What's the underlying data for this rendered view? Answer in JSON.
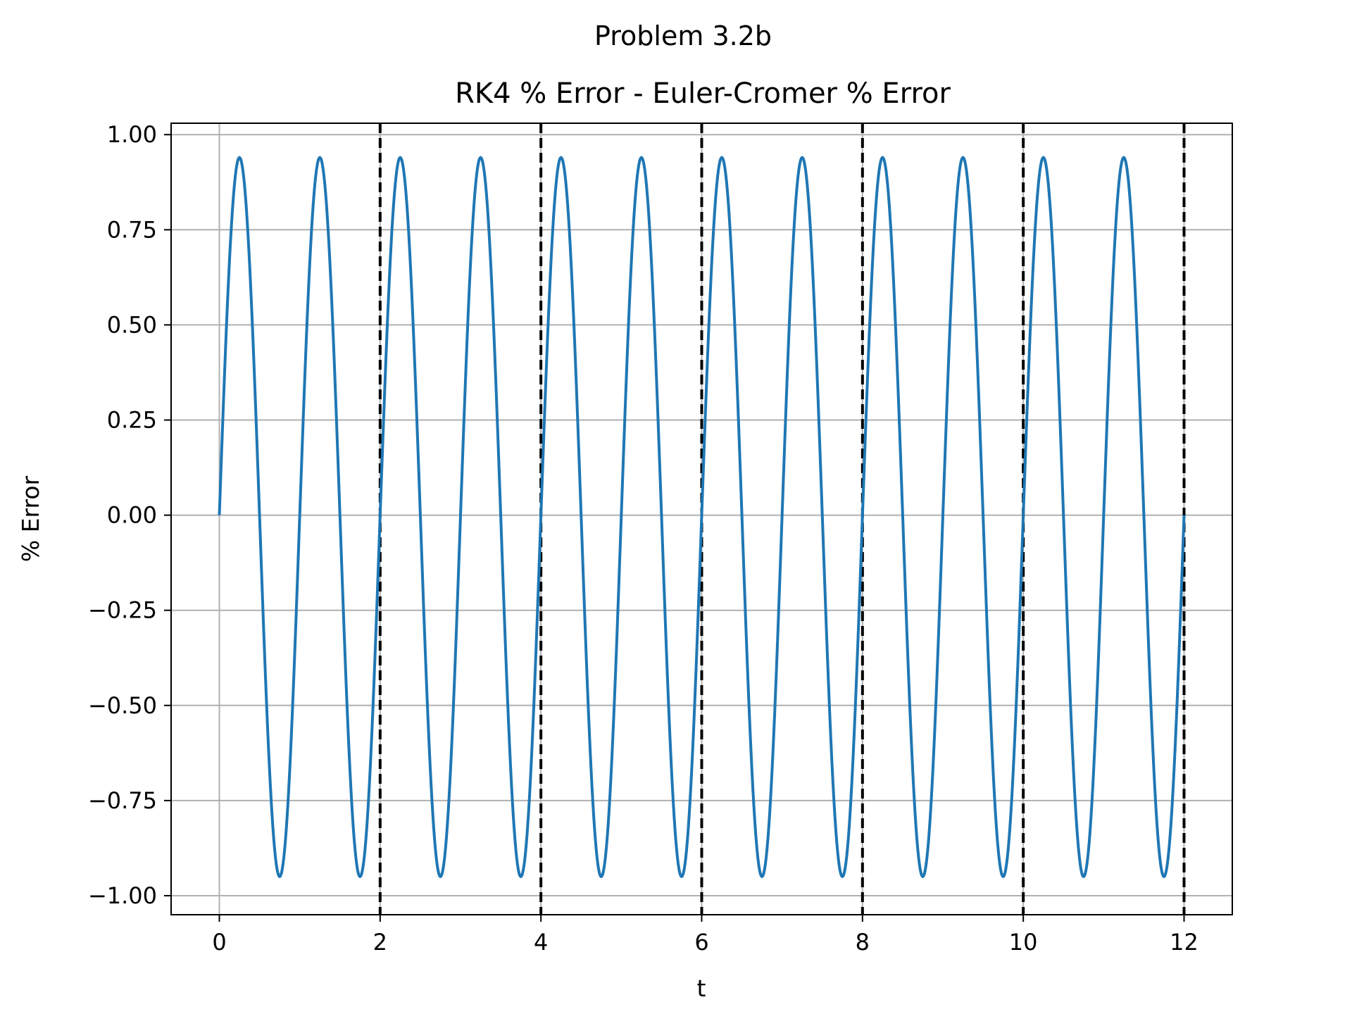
{
  "chart_data": {
    "type": "line",
    "suptitle": "Problem 3.2b",
    "title": "RK4 % Error - Euler-Cromer % Error",
    "xlabel": "t",
    "ylabel": "% Error",
    "xlim": [
      -0.6,
      12.6
    ],
    "ylim": [
      -1.05,
      1.03
    ],
    "xticks": [
      0,
      2,
      4,
      6,
      8,
      10,
      12
    ],
    "xtick_labels": [
      "0",
      "2",
      "4",
      "6",
      "8",
      "10",
      "12"
    ],
    "yticks": [
      1.0,
      0.75,
      0.5,
      0.25,
      0.0,
      -0.25,
      -0.5,
      -0.75,
      -1.0
    ],
    "ytick_labels": [
      "1.00",
      "0.75",
      "0.50",
      "0.25",
      "0.00",
      "−0.25",
      "−0.50",
      "−0.75",
      "−1.00"
    ],
    "grid": true,
    "series": [
      {
        "color": "#1f77b4",
        "x": [
          0,
          0.25,
          0.5,
          0.75,
          1.0,
          1.25,
          1.5,
          1.75,
          2.0,
          2.25,
          2.5,
          2.75,
          3.0,
          3.25,
          3.5,
          3.75,
          4.0,
          4.25,
          4.5,
          4.75,
          5.0,
          5.25,
          5.5,
          5.75,
          6.0,
          6.25,
          6.5,
          6.75,
          7.0,
          7.25,
          7.5,
          7.75,
          8.0,
          8.25,
          8.5,
          8.75,
          9.0,
          9.25,
          9.5,
          9.75,
          10.0,
          10.25,
          10.5,
          10.75,
          11.0,
          11.25,
          11.5,
          11.75,
          12.0
        ],
        "y": [
          0,
          0.94,
          0,
          -0.95,
          0,
          0.94,
          0,
          -0.95,
          0,
          0.94,
          0,
          -0.95,
          0,
          0.94,
          0,
          -0.95,
          0,
          0.94,
          0,
          -0.95,
          0,
          0.94,
          0,
          -0.95,
          0,
          0.94,
          0,
          -0.95,
          0,
          0.94,
          0,
          -0.95,
          0,
          0.94,
          0,
          -0.95,
          0,
          0.94,
          0,
          -0.95,
          0,
          0.94,
          0,
          -0.95,
          0,
          0.94,
          0,
          -0.95,
          0
        ]
      }
    ],
    "vlines": {
      "x": [
        2.0,
        4.0,
        6.0,
        8.0,
        10.0,
        12.0
      ],
      "color": "#000000",
      "style": "dashed"
    }
  }
}
